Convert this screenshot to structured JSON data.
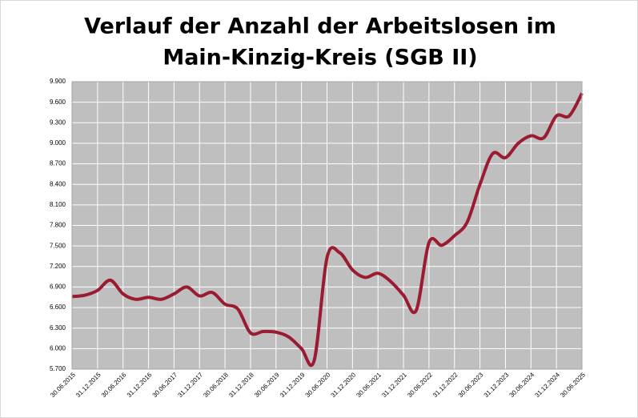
{
  "chart_data": {
    "type": "line",
    "title": [
      "Verlauf der Anzahl der Arbeitslosen im",
      "Main-Kinzig-Kreis (SGB II)"
    ],
    "categories": [
      "30.06.2015",
      null,
      "31.12.2015",
      null,
      "30.06.2016",
      null,
      "31.12.2016",
      null,
      "30.06.2017",
      null,
      "31.12.2017",
      null,
      "30.06.2018",
      null,
      "31.12.2018",
      null,
      "30.06.2019",
      null,
      "31.12.2019",
      null,
      "30.06.2020",
      null,
      "31.12.2020",
      null,
      "30.06.2021",
      null,
      "31.12.2021",
      null,
      "30.06.2022",
      null,
      "31.12.2022",
      null,
      "30.06.2023",
      null,
      "31.12.2023",
      null,
      "30.06.2024",
      null,
      "31.12.2024",
      null,
      "30.06.2025"
    ],
    "series": [
      {
        "color": "#9b1b30",
        "values": [
          6760,
          6780,
          6850,
          7000,
          6800,
          6720,
          6750,
          6720,
          6800,
          6900,
          6770,
          6820,
          6650,
          6580,
          6230,
          6250,
          6240,
          6170,
          6000,
          5830,
          7330,
          7400,
          7150,
          7040,
          7100,
          6980,
          6780,
          6560,
          7550,
          7510,
          7650,
          7850,
          8400,
          8850,
          8790,
          9000,
          9110,
          9080,
          9400,
          9400,
          9730
        ]
      }
    ],
    "ylim": [
      5700,
      9900
    ],
    "yticks": [
      {
        "value": 5700,
        "label": "5.700"
      },
      {
        "value": 6000,
        "label": "6.000"
      },
      {
        "value": 6300,
        "label": "6.300"
      },
      {
        "value": 6600,
        "label": "6.600"
      },
      {
        "value": 6900,
        "label": "6.900"
      },
      {
        "value": 7200,
        "label": "7.200"
      },
      {
        "value": 7500,
        "label": "7.500"
      },
      {
        "value": 7800,
        "label": "7.800"
      },
      {
        "value": 8100,
        "label": "8.100"
      },
      {
        "value": 8400,
        "label": "8.400"
      },
      {
        "value": 8700,
        "label": "8.700"
      },
      {
        "value": 9000,
        "label": "9.000"
      },
      {
        "value": 9300,
        "label": "9.300"
      },
      {
        "value": 9600,
        "label": "9.600"
      },
      {
        "value": 9900,
        "label": "9.900"
      }
    ],
    "grid": true
  }
}
